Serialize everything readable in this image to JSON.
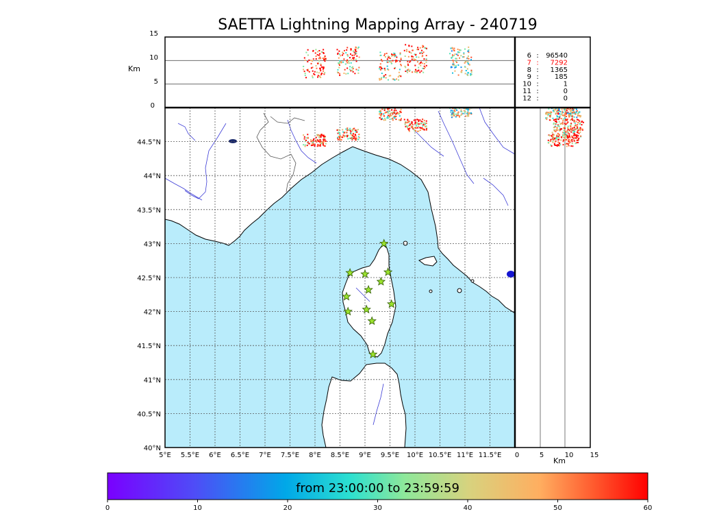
{
  "title": "SAETTA Lightning Mapping Array - 240719",
  "colors": {
    "sea": "#b9ecfb",
    "coast": "#000000",
    "river": "#3b3bd6",
    "border": "#555555",
    "station_fill": "#9be22d",
    "station_edge": "#2e5a00",
    "grid": "#555555"
  },
  "alt_panel": {
    "ylabel": "Km",
    "yticks": [
      "15",
      "10",
      "5",
      "0"
    ],
    "ylim": [
      0,
      15
    ],
    "gridlines_km": [
      5,
      10
    ]
  },
  "right_panel": {
    "xlabel": "Km",
    "xticks": [
      "0",
      "5",
      "10",
      "15"
    ],
    "xlim": [
      0,
      15
    ]
  },
  "map": {
    "lon_ticks": [
      "5°E",
      "5.5°E",
      "6°E",
      "6.5°E",
      "7°E",
      "7.5°E",
      "8°E",
      "8.5°E",
      "9°E",
      "9.5°E",
      "10°E",
      "10.5°E",
      "11°E",
      "11.5°E"
    ],
    "lat_ticks": [
      "44.5°N",
      "44°N",
      "43.5°N",
      "43°N",
      "42.5°N",
      "42°N",
      "41.5°N",
      "41°N",
      "40.5°N",
      "40°N"
    ],
    "lon_range": [
      5,
      12
    ],
    "lat_range": [
      40,
      45
    ]
  },
  "station_counts": [
    {
      "stations": "6",
      "count": "96540",
      "highlight": false
    },
    {
      "stations": "7",
      "count": "7292",
      "highlight": true
    },
    {
      "stations": "8",
      "count": "1365",
      "highlight": false
    },
    {
      "stations": "9",
      "count": "185",
      "highlight": false
    },
    {
      "stations": "10",
      "count": "1",
      "highlight": false
    },
    {
      "stations": "11",
      "count": "0",
      "highlight": false
    },
    {
      "stations": "12",
      "count": "0",
      "highlight": false
    }
  ],
  "colorbar": {
    "label": "from 23:00:00 to 23:59:59",
    "ticks": [
      "0",
      "10",
      "20",
      "30",
      "40",
      "50",
      "60"
    ],
    "range": [
      0,
      60
    ]
  },
  "stations_lonlat": [
    [
      9.38,
      43.0
    ],
    [
      8.7,
      42.57
    ],
    [
      9.0,
      42.55
    ],
    [
      9.46,
      42.58
    ],
    [
      9.32,
      42.44
    ],
    [
      9.07,
      42.32
    ],
    [
      8.63,
      42.22
    ],
    [
      9.53,
      42.11
    ],
    [
      8.66,
      42.0
    ],
    [
      9.03,
      42.03
    ],
    [
      9.14,
      41.86
    ],
    [
      9.16,
      41.37
    ]
  ],
  "lightning_clusters": [
    {
      "lon": 7.98,
      "lat": 44.53,
      "alt_km": 9.5,
      "minute": 55
    },
    {
      "lon": 8.65,
      "lat": 44.62,
      "alt_km": 10.0,
      "minute": 50
    },
    {
      "lon": 9.5,
      "lat": 44.91,
      "alt_km": 9.0,
      "minute": 45
    },
    {
      "lon": 10.0,
      "lat": 44.75,
      "alt_km": 10.5,
      "minute": 52
    },
    {
      "lon": 10.9,
      "lat": 44.95,
      "alt_km": 10.0,
      "minute": 35
    }
  ]
}
